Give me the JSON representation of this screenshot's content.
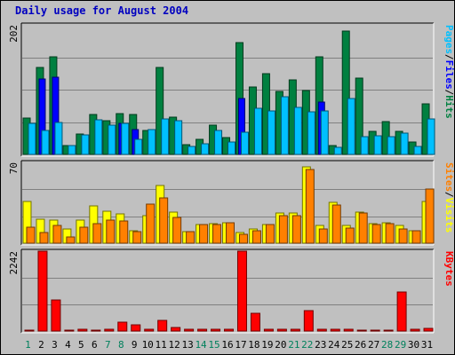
{
  "title": "Daily usage for August 2004",
  "chart_data": [
    {
      "type": "bar",
      "panel": "hits",
      "ymax_label": "202",
      "ylim": [
        0,
        202
      ],
      "grid": true,
      "legend_placement": "right",
      "categories": [
        "1",
        "2",
        "3",
        "4",
        "5",
        "6",
        "7",
        "8",
        "9",
        "10",
        "11",
        "12",
        "13",
        "14",
        "15",
        "16",
        "17",
        "18",
        "19",
        "20",
        "21",
        "22",
        "23",
        "24",
        "25",
        "26",
        "27",
        "28",
        "29",
        "30",
        "31"
      ],
      "weekend_days": [
        "1",
        "7",
        "8",
        "14",
        "15",
        "21",
        "22",
        "28",
        "29"
      ],
      "series": [
        {
          "name": "Hits",
          "color": "#008040",
          "values": [
            57,
            136,
            152,
            14,
            32,
            62,
            53,
            64,
            62,
            38,
            136,
            58,
            15,
            24,
            45,
            26,
            174,
            105,
            126,
            98,
            116,
            99,
            152,
            14,
            193,
            119,
            36,
            51,
            36,
            19,
            79
          ]
        },
        {
          "name": "Files",
          "color": "#0000ff",
          "values": [
            0,
            118,
            121,
            0,
            0,
            0,
            0,
            48,
            39,
            0,
            0,
            0,
            0,
            0,
            0,
            0,
            87,
            0,
            0,
            0,
            0,
            0,
            82,
            0,
            0,
            0,
            0,
            0,
            0,
            0,
            0
          ]
        },
        {
          "name": "Pages",
          "color": "#00c0ff",
          "values": [
            48,
            38,
            50,
            14,
            30,
            54,
            45,
            48,
            24,
            39,
            55,
            52,
            13,
            16,
            37,
            19,
            34,
            72,
            68,
            90,
            73,
            67,
            68,
            11,
            87,
            28,
            29,
            28,
            33,
            13,
            55
          ]
        }
      ],
      "legend": [
        {
          "label": "Pages",
          "color": "#00c0ff"
        },
        {
          "label": "Files",
          "color": "#0000ff"
        },
        {
          "label": "Hits",
          "color": "#008040"
        }
      ]
    },
    {
      "type": "bar",
      "panel": "visits",
      "ymax_label": "70",
      "ylim": [
        0,
        70
      ],
      "grid": true,
      "legend_placement": "right",
      "categories": [
        "1",
        "2",
        "3",
        "4",
        "5",
        "6",
        "7",
        "8",
        "9",
        "10",
        "11",
        "12",
        "13",
        "14",
        "15",
        "16",
        "17",
        "18",
        "19",
        "20",
        "21",
        "22",
        "23",
        "24",
        "25",
        "26",
        "27",
        "28",
        "29",
        "30",
        "31"
      ],
      "series": [
        {
          "name": "Visits",
          "color": "#ffff00",
          "values": [
            36,
            21,
            20,
            12,
            20,
            32,
            28,
            25,
            11,
            24,
            50,
            27,
            10,
            16,
            17,
            18,
            9,
            12,
            16,
            26,
            26,
            66,
            15,
            35,
            15,
            27,
            17,
            18,
            15,
            11,
            36
          ]
        },
        {
          "name": "Sites",
          "color": "#ff8000",
          "values": [
            14,
            9,
            15,
            5,
            14,
            17,
            20,
            19,
            10,
            34,
            39,
            22,
            10,
            16,
            16,
            18,
            8,
            11,
            16,
            24,
            24,
            64,
            12,
            33,
            13,
            26,
            16,
            17,
            12,
            11,
            47
          ]
        }
      ],
      "legend": [
        {
          "label": "Sites",
          "color": "#ff8000"
        },
        {
          "label": "Visits",
          "color": "#ffff00"
        }
      ]
    },
    {
      "type": "bar",
      "panel": "kbytes",
      "ymax_label": "2242",
      "ylim": [
        0,
        2242
      ],
      "grid": true,
      "legend_placement": "right",
      "categories": [
        "1",
        "2",
        "3",
        "4",
        "5",
        "6",
        "7",
        "8",
        "9",
        "10",
        "11",
        "12",
        "13",
        "14",
        "15",
        "16",
        "17",
        "18",
        "19",
        "20",
        "21",
        "22",
        "23",
        "24",
        "25",
        "26",
        "27",
        "28",
        "29",
        "30",
        "31"
      ],
      "series": [
        {
          "name": "KBytes",
          "color": "#ff0000",
          "values": [
            20,
            2242,
            864,
            30,
            40,
            30,
            40,
            240,
            175,
            45,
            300,
            90,
            40,
            40,
            55,
            40,
            2242,
            495,
            55,
            55,
            45,
            575,
            45,
            45,
            45,
            35,
            35,
            35,
            1095,
            45,
            70
          ]
        }
      ],
      "legend": [
        {
          "label": "KBytes",
          "color": "#ff0000"
        }
      ]
    }
  ]
}
